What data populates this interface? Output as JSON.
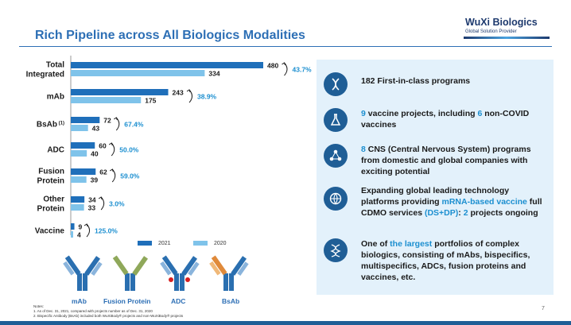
{
  "title": "Rich Pipeline across All Biologics Modalities",
  "logo": {
    "brand": "WuXi Biologics",
    "tagline": "Global Solution Provider"
  },
  "chart_data": {
    "type": "bar",
    "orientation": "horizontal",
    "categories": [
      "Total\nIntegrated",
      "mAb",
      "BsAb (1)",
      "ADC",
      "Fusion\nProtein",
      "Other\nProtein",
      "Vaccine"
    ],
    "series": [
      {
        "name": "2021",
        "values": [
          480,
          243,
          72,
          60,
          62,
          34,
          9
        ],
        "color": "#1f6fba"
      },
      {
        "name": "2020",
        "values": [
          334,
          175,
          43,
          40,
          39,
          33,
          4
        ],
        "color": "#7fc3ea"
      }
    ],
    "growth": [
      "43.7%",
      "38.9%",
      "67.4%",
      "50.0%",
      "59.0%",
      "3.0%",
      "125.0%"
    ],
    "legend_position": "bottom",
    "xlim": [
      0,
      480
    ]
  },
  "highlights": [
    {
      "icon": "dna-icon",
      "parts": [
        {
          "t": "182 First-in-class programs",
          "h": false
        }
      ]
    },
    {
      "icon": "flask-icon",
      "parts": [
        {
          "t": "9",
          "h": true
        },
        {
          "t": " vaccine projects, including ",
          "h": false
        },
        {
          "t": "6",
          "h": true
        },
        {
          "t": " non-COVID vaccines",
          "h": false
        }
      ]
    },
    {
      "icon": "molecule-icon",
      "parts": [
        {
          "t": "8",
          "h": true
        },
        {
          "t": " CNS (Central Nervous System) programs from domestic and global companies with exciting potential",
          "h": false
        }
      ]
    },
    {
      "icon": "globe-icon",
      "parts": [
        {
          "t": "Expanding global leading technology platforms providing ",
          "h": false
        },
        {
          "t": "mRNA-based vaccine",
          "h": true
        },
        {
          "t": " full CDMO services ",
          "h": false
        },
        {
          "t": "(DS+DP)",
          "h": true
        },
        {
          "t": ": ",
          "h": false
        },
        {
          "t": "2",
          "h": true
        },
        {
          "t": " projects ongoing",
          "h": false
        }
      ]
    },
    {
      "icon": "helix-icon",
      "parts": [
        {
          "t": "One of ",
          "h": false
        },
        {
          "t": "the largest",
          "h": true
        },
        {
          "t": " portfolios of complex biologics, consisting of mAbs, bispecifics, multispecifics, ADCs, fusion proteins and vaccines, etc.",
          "h": false
        }
      ]
    }
  ],
  "modalities": [
    "mAb",
    "Fusion Protein",
    "ADC",
    "BsAb"
  ],
  "notes": {
    "heading": "Notes:",
    "lines": [
      "1. As of Dec. 31, 2021, compared with projects number as of Dec. 31, 2020",
      "2. Bispecific Antibody (BsAb) included both WuXiBody® projects and non-WuXiBody® projects"
    ]
  },
  "page_number": "7"
}
